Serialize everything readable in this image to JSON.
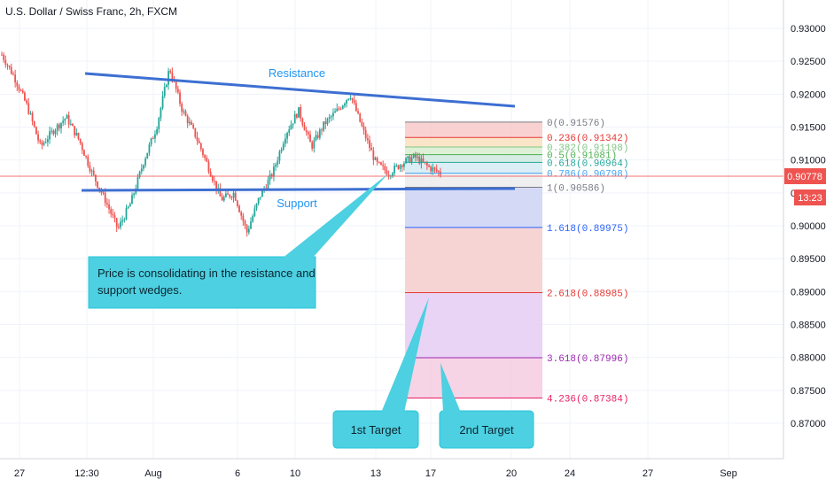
{
  "header": {
    "title": "U.S. Dollar / Swiss Franc, 2h, FXCM"
  },
  "chart_data": {
    "type": "candlestick",
    "price_axis": {
      "range": [
        0.8655,
        0.9335
      ],
      "ticks": [
        "0.93000",
        "0.92500",
        "0.92000",
        "0.91500",
        "0.91000",
        "0.90500",
        "0.90000",
        "0.89500",
        "0.89000",
        "0.88500",
        "0.88000",
        "0.87500",
        "0.87000"
      ],
      "last_price": "0.90778",
      "countdown": "13:23"
    },
    "time_axis": {
      "ticks": [
        "27",
        "12:30",
        "Aug",
        "6",
        "10",
        "13",
        "17",
        "20",
        "24",
        "27",
        "Sep"
      ]
    },
    "price_path": [
      0.926,
      0.9225,
      0.918,
      0.912,
      0.9145,
      0.9165,
      0.913,
      0.908,
      0.904,
      0.8995,
      0.9035,
      0.9098,
      0.915,
      0.924,
      0.9175,
      0.9138,
      0.909,
      0.904,
      0.905,
      0.899,
      0.9045,
      0.908,
      0.914,
      0.9175,
      0.912,
      0.9155,
      0.9175,
      0.92,
      0.9145,
      0.9095,
      0.908,
      0.9095,
      0.9105,
      0.909,
      0.908
    ],
    "drawings": {
      "resistance_label": "Resistance",
      "support_label": "Support",
      "callouts": [
        {
          "lines": [
            "Price is consolidating in the resistance and",
            "support wedges."
          ]
        },
        {
          "lines": [
            "1st Target"
          ]
        },
        {
          "lines": [
            "2nd Target"
          ]
        }
      ]
    },
    "fibonacci": [
      {
        "label": "0(0.91576)",
        "price": 0.91576,
        "color": "#787b86"
      },
      {
        "label": "0.236(0.91342)",
        "price": 0.91342,
        "color": "#e53935"
      },
      {
        "label": "0.382(0.91198)",
        "price": 0.91198,
        "color": "#81c784"
      },
      {
        "label": "0.5(0.91081)",
        "price": 0.91081,
        "color": "#4caf50"
      },
      {
        "label": "0.618(0.90964)",
        "price": 0.90964,
        "color": "#26a69a"
      },
      {
        "label": "0.786(0.90798)",
        "price": 0.90798,
        "color": "#42a5f5"
      },
      {
        "label": "1(0.90586)",
        "price": 0.90586,
        "color": "#787b86"
      },
      {
        "label": "1.618(0.89975)",
        "price": 0.89975,
        "color": "#2962ff"
      },
      {
        "label": "2.618(0.88985)",
        "price": 0.88985,
        "color": "#e53935"
      },
      {
        "label": "3.618(0.87996)",
        "price": 0.87996,
        "color": "#9c27b0"
      },
      {
        "label": "4.236(0.87384)",
        "price": 0.87384,
        "color": "#e91e63"
      }
    ],
    "colors": {
      "up": "#26a69a",
      "down": "#ef5350",
      "trendline": "#3d6fd1",
      "callout": "#4dd0e1",
      "price_line": "#ef5350"
    }
  }
}
